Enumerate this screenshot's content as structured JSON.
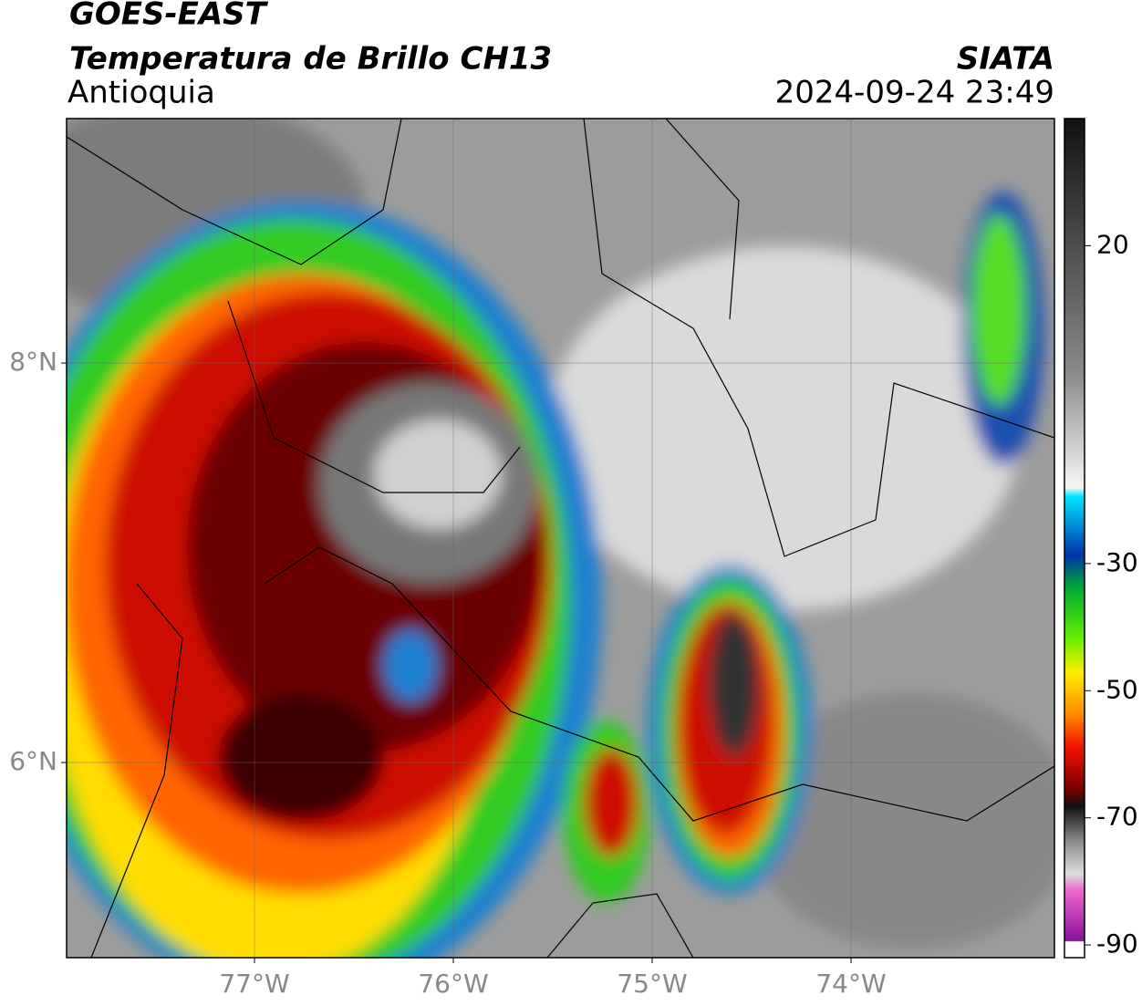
{
  "header": {
    "title": "GOES-EAST",
    "subtitle": "Temperatura de Brillo CH13",
    "region": "Antioquia",
    "source": "SIATA",
    "timestamp": "2024-09-24 23:49"
  },
  "map": {
    "xlim": [
      -77.945,
      -72.977
    ],
    "ylim": [
      5.023,
      9.224
    ],
    "xticks": [
      {
        "value": -77,
        "label": "77°W"
      },
      {
        "value": -76,
        "label": "76°W"
      },
      {
        "value": -75,
        "label": "75°W"
      },
      {
        "value": -74,
        "label": "74°W"
      }
    ],
    "yticks": [
      {
        "value": 8,
        "label": "8°N"
      },
      {
        "value": 6,
        "label": "6°N"
      }
    ],
    "grid": true
  },
  "colorbar": {
    "lim": [
      -92,
      40
    ],
    "ticks": [
      20,
      -30,
      -50,
      -70,
      -90
    ]
  }
}
